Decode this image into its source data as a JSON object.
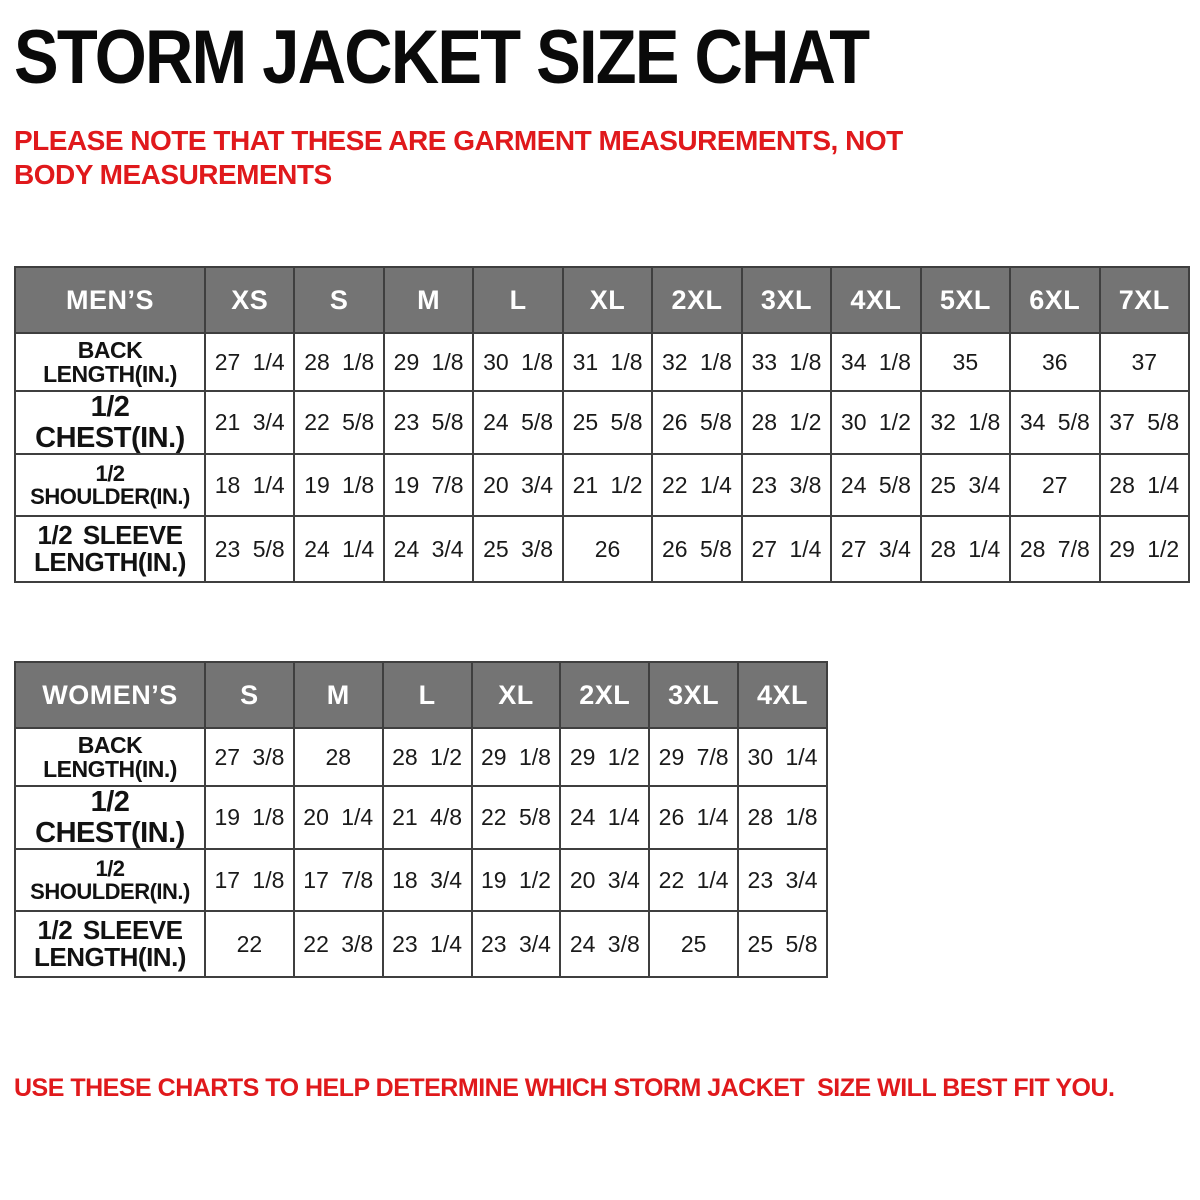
{
  "page": {
    "title": "STORM JACKET SIZE CHAT",
    "note": "PLEASE NOTE THAT THESE ARE GARMENT MEASUREMENTS, NOT BODY MEASUREMENTS",
    "footer": "USE THESE CHARTS TO HELP DETERMINE WHICH STORM JACKET  SIZE WILL BEST FIT YOU."
  },
  "colors": {
    "accent_red": "#e0191c",
    "header_gray": "#747474",
    "header_text": "#ffffff",
    "border": "#3f3f3f"
  },
  "tables": {
    "mens": {
      "name": "MEN’S",
      "sizes": [
        "XS",
        "S",
        "M",
        "L",
        "XL",
        "2XL",
        "3XL",
        "4XL",
        "5XL",
        "6XL",
        "7XL"
      ],
      "rows": [
        {
          "label_lines": [
            "BACK",
            "LENGTH(IN.)"
          ],
          "values": [
            "27 1/4",
            "28 1/8",
            "29 1/8",
            "30 1/8",
            "31 1/8",
            "32 1/8",
            "33 1/8",
            "34 1/8",
            "35",
            "36",
            "37"
          ]
        },
        {
          "label_lines": [
            "1/2 CHEST(IN.)"
          ],
          "values": [
            "21 3/4",
            "22 5/8",
            "23 5/8",
            "24 5/8",
            "25 5/8",
            "26 5/8",
            "28 1/2",
            "30 1/2",
            "32 1/8",
            "34 5/8",
            "37 5/8"
          ]
        },
        {
          "label_lines": [
            "1/2 SHOULDER(IN.)"
          ],
          "values": [
            "18 1/4",
            "19 1/8",
            "19 7/8",
            "20 3/4",
            "21 1/2",
            "22 1/4",
            "23 3/8",
            "24 5/8",
            "25 3/4",
            "27",
            "28 1/4"
          ]
        },
        {
          "label_lines": [
            "1/2 SLEEVE",
            "LENGTH(IN.)"
          ],
          "values": [
            "23 5/8",
            "24 1/4",
            "24 3/4",
            "25 3/8",
            "26",
            "26 5/8",
            "27 1/4",
            "27 3/4",
            "28 1/4",
            "28 7/8",
            "29 1/2"
          ]
        }
      ]
    },
    "womens": {
      "name": "WOMEN’S",
      "sizes": [
        "S",
        "M",
        "L",
        "XL",
        "2XL",
        "3XL",
        "4XL"
      ],
      "rows": [
        {
          "label_lines": [
            "BACK",
            "LENGTH(IN.)"
          ],
          "values": [
            "27 3/8",
            "28",
            "28 1/2",
            "29 1/8",
            "29 1/2",
            "29 7/8",
            "30 1/4"
          ]
        },
        {
          "label_lines": [
            "1/2 CHEST(IN.)"
          ],
          "values": [
            "19 1/8",
            "20 1/4",
            "21 4/8",
            "22 5/8",
            "24 1/4",
            "26 1/4",
            "28 1/8"
          ]
        },
        {
          "label_lines": [
            "1/2 SHOULDER(IN.)"
          ],
          "values": [
            "17 1/8",
            "17 7/8",
            "18 3/4",
            "19 1/2",
            "20 3/4",
            "22 1/4",
            "23 3/4"
          ]
        },
        {
          "label_lines": [
            "1/2 SLEEVE",
            "LENGTH(IN.)"
          ],
          "values": [
            "22",
            "22 3/8",
            "23 1/4",
            "23 3/4",
            "24 3/8",
            "25",
            "25 5/8"
          ]
        }
      ]
    }
  }
}
